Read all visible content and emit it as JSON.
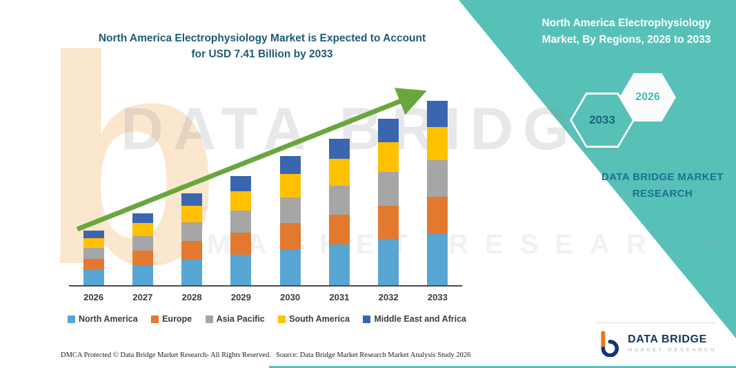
{
  "title": {
    "line1": "North America Electrophysiology Market is Expected to Account",
    "line2": "for USD 7.41 Billion by 2033"
  },
  "side_panel": {
    "title_line1": "North America Electrophysiology",
    "title_line2": "Market, By Regions, 2026 to 2033",
    "year_start": "2026",
    "year_end": "2033",
    "brand_line1": "DATA BRIDGE MARKET",
    "brand_line2": "RESEARCH",
    "panel_color": "#57c1b8"
  },
  "watermark": {
    "letter": "b",
    "line1": "DATA BRIDGE",
    "line2": "MARKET RESEARCH"
  },
  "chart_data": {
    "type": "bar",
    "stacked": true,
    "title": "North America Electrophysiology Market is Expected to Account for USD 7.41 Billion by 2033",
    "unit": "USD Billion",
    "categories": [
      "2026",
      "2027",
      "2028",
      "2029",
      "2030",
      "2031",
      "2032",
      "2033"
    ],
    "series": [
      {
        "name": "North America",
        "color": "#58a6d3",
        "values": [
          0.62,
          0.81,
          1.04,
          1.23,
          1.45,
          1.65,
          1.87,
          2.07
        ]
      },
      {
        "name": "Europe",
        "color": "#e2792e",
        "values": [
          0.44,
          0.58,
          0.74,
          0.88,
          1.04,
          1.18,
          1.34,
          1.48
        ]
      },
      {
        "name": "Asia Pacific",
        "color": "#a6a6a6",
        "values": [
          0.44,
          0.58,
          0.74,
          0.88,
          1.04,
          1.18,
          1.34,
          1.48
        ]
      },
      {
        "name": "South America",
        "color": "#ffc000",
        "values": [
          0.4,
          0.52,
          0.67,
          0.79,
          0.94,
          1.06,
          1.21,
          1.34
        ]
      },
      {
        "name": "Middle East and Africa",
        "color": "#3a66b0",
        "values": [
          0.3,
          0.41,
          0.51,
          0.62,
          0.73,
          0.83,
          0.94,
          1.04
        ]
      }
    ],
    "totals": [
      2.2,
      2.9,
      3.7,
      4.4,
      5.2,
      5.9,
      6.7,
      7.41
    ],
    "ylim": [
      0,
      8
    ],
    "grid": false,
    "legend_position": "bottom",
    "trend_arrow": true,
    "trend_arrow_color": "#69a73d"
  },
  "footer": {
    "dmca": "DMCA Protected © Data Bridge Market Research-  All Rights Reserved.",
    "source": "Source: Data Bridge Market Research  Market Analysis Study 2026"
  },
  "brand_logo": {
    "name": "DATA BRIDGE",
    "tagline": "MARKET RESEARCH"
  }
}
